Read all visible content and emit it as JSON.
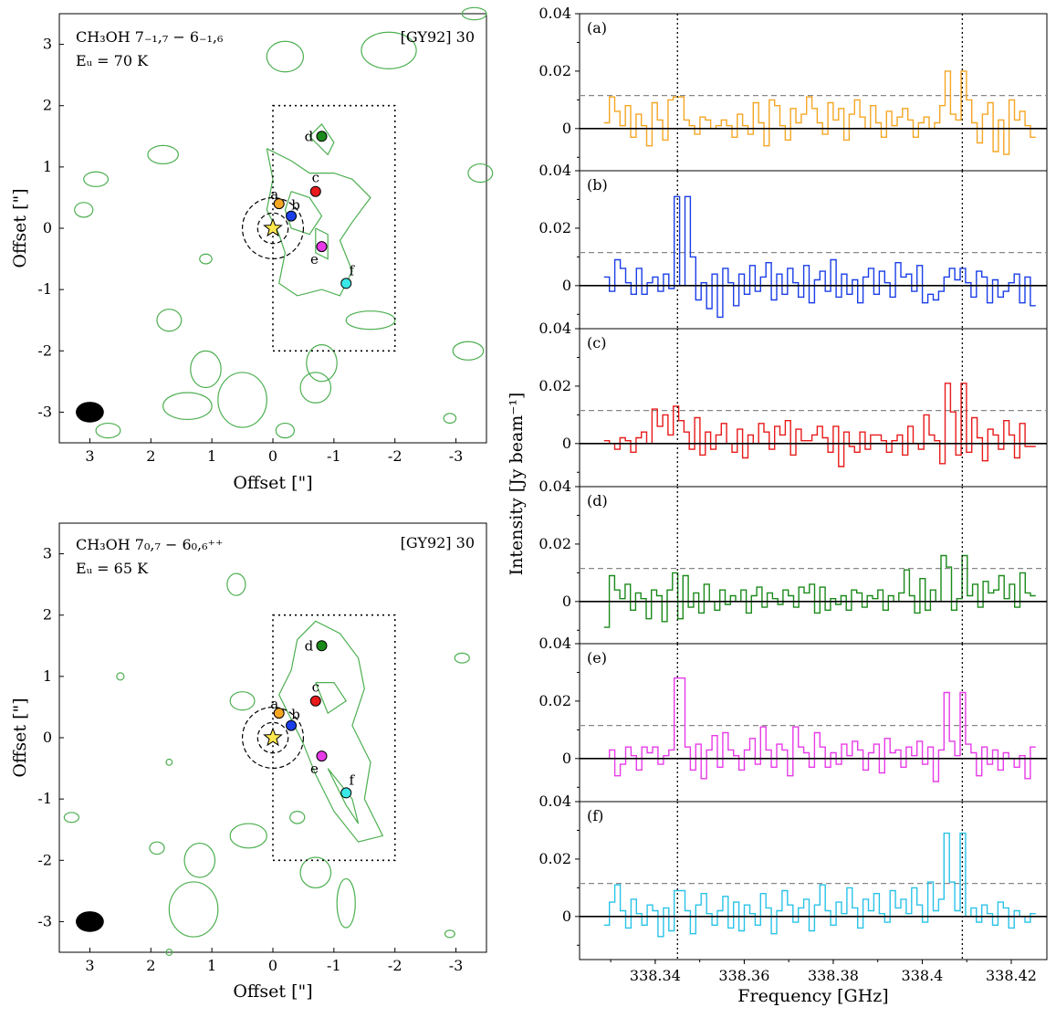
{
  "chart_data": [
    {
      "type": "contour-map",
      "name": "map-top",
      "title_line1": "CH₃OH 7₋₁,₇ − 6₋₁,₆",
      "title_line2": "Eᵤ = 70 K",
      "source": "[GY92] 30",
      "xlabel": "Offset [\"]",
      "ylabel": "Offset [\"]",
      "xlim": [
        3.5,
        -3.5
      ],
      "ylim": [
        -3.5,
        3.5
      ],
      "xticks": [
        3,
        2,
        1,
        0,
        -1,
        -2,
        -3
      ],
      "yticks": [
        3,
        2,
        1,
        0,
        -1,
        -2,
        -3
      ],
      "region_box": {
        "x": [
          0,
          -2
        ],
        "y": [
          -2,
          2
        ]
      },
      "star": {
        "x": 0,
        "y": 0
      },
      "beam": {
        "x": 3,
        "y": -3
      },
      "points": [
        {
          "label": "a",
          "x": -0.1,
          "y": 0.4,
          "color": "#f5a623"
        },
        {
          "label": "b",
          "x": -0.3,
          "y": 0.2,
          "color": "#1a3ee8"
        },
        {
          "label": "c",
          "x": -0.7,
          "y": 0.6,
          "color": "#e81a1a"
        },
        {
          "label": "d",
          "x": -0.8,
          "y": 1.5,
          "color": "#1a8a1a"
        },
        {
          "label": "e",
          "x": -0.8,
          "y": -0.3,
          "color": "#e83ae8"
        },
        {
          "label": "f",
          "x": -1.2,
          "y": -0.9,
          "color": "#3ae8e8"
        }
      ]
    },
    {
      "type": "contour-map",
      "name": "map-bottom",
      "title_line1": "CH₃OH 7₀,₇ − 6₀,₆⁺⁺",
      "title_line2": "Eᵤ = 65 K",
      "source": "[GY92] 30",
      "xlabel": "Offset [\"]",
      "ylabel": "Offset [\"]",
      "xlim": [
        3.5,
        -3.5
      ],
      "ylim": [
        -3.5,
        3.5
      ],
      "xticks": [
        3,
        2,
        1,
        0,
        -1,
        -2,
        -3
      ],
      "yticks": [
        3,
        2,
        1,
        0,
        -1,
        -2,
        -3
      ],
      "region_box": {
        "x": [
          0,
          -2
        ],
        "y": [
          -2,
          2
        ]
      },
      "star": {
        "x": 0,
        "y": 0
      },
      "beam": {
        "x": 3,
        "y": -3
      },
      "points": [
        {
          "label": "a",
          "x": -0.1,
          "y": 0.4,
          "color": "#f5a623"
        },
        {
          "label": "b",
          "x": -0.3,
          "y": 0.2,
          "color": "#1a3ee8"
        },
        {
          "label": "c",
          "x": -0.7,
          "y": 0.6,
          "color": "#e81a1a"
        },
        {
          "label": "d",
          "x": -0.8,
          "y": 1.5,
          "color": "#1a8a1a"
        },
        {
          "label": "e",
          "x": -0.8,
          "y": -0.3,
          "color": "#e83ae8"
        },
        {
          "label": "f",
          "x": -1.2,
          "y": -0.9,
          "color": "#3ae8e8"
        }
      ]
    },
    {
      "type": "line",
      "name": "spectra",
      "xlabel": "Frequency [GHz]",
      "ylabel": "Intensity [Jy beam⁻¹]",
      "xlim": [
        338.323,
        338.428
      ],
      "ylim": [
        -0.015,
        0.04
      ],
      "xticks": [
        "338.34",
        "338.36",
        "338.38",
        "338.4",
        "338.42"
      ],
      "xtick_values": [
        338.34,
        338.36,
        338.38,
        338.4,
        338.42
      ],
      "yticks": [
        "0",
        "0.02",
        "0.04"
      ],
      "ytick_values": [
        0,
        0.02,
        0.04
      ],
      "line_freqs": [
        338.345,
        338.409
      ],
      "threshold": 0.0115,
      "panels": [
        {
          "label": "(a)",
          "color": "#f5a623",
          "peaks": [
            [
              338.345,
              0.011
            ],
            [
              338.409,
              0.02
            ]
          ],
          "values": [
            0.002,
            0.011,
            0.006,
            0.001,
            0.008,
            -0.003,
            0.005,
            0.001,
            -0.006,
            0.009,
            0.003,
            -0.004,
            0.01,
            0.004,
            0.011,
            0.003,
            0.001,
            -0.002,
            0.004,
            0.003,
            0.0,
            0.001,
            0.003,
            0.001,
            -0.003,
            0.005,
            0.001,
            -0.002,
            0.009,
            0.002,
            -0.006,
            0.01,
            0.008,
            0.001,
            -0.004,
            0.007,
            0.002,
            0.005,
            0.011,
            0.007,
            0.002,
            -0.002,
            0.009,
            0.003,
            0.007,
            -0.004,
            0.005,
            0.01,
            0.004,
            0.0,
            0.008,
            0.002,
            -0.003,
            0.006,
            0.001,
            0.004,
            0.007,
            0.003,
            -0.003,
            0.002,
            0.004,
            0.0,
            0.002,
            0.008,
            0.02,
            0.005,
            0.003,
            -0.002,
            0.01,
            0.002,
            -0.005,
            0.005,
            0.009,
            -0.008,
            0.003,
            -0.009,
            0.01,
            0.003,
            0.006,
            0.001,
            -0.003
          ]
        },
        {
          "label": "(b)",
          "color": "#1a3ee8",
          "peaks": [
            [
              338.345,
              0.031
            ],
            [
              338.409,
              0.006
            ]
          ],
          "values": [
            0.003,
            -0.002,
            0.009,
            0.006,
            0.001,
            -0.003,
            0.006,
            -0.003,
            0.001,
            0.003,
            -0.002,
            0.004,
            -0.001,
            0.003,
            0.0,
            0.031,
            0.01,
            -0.005,
            0.001,
            -0.008,
            0.004,
            -0.011,
            0.006,
            0.001,
            -0.007,
            0.004,
            -0.003,
            0.007,
            -0.002,
            0.003,
            0.008,
            -0.005,
            0.004,
            -0.003,
            0.006,
            0.001,
            -0.004,
            0.007,
            -0.006,
            0.002,
            0.005,
            -0.002,
            0.009,
            -0.004,
            0.004,
            -0.003,
            0.002,
            -0.006,
            0.003,
            0.006,
            -0.003,
            0.005,
            0.001,
            -0.004,
            0.008,
            0.003,
            0.004,
            -0.002,
            0.007,
            -0.006,
            -0.003,
            -0.005,
            -0.002,
            0.003,
            0.006,
            0.002,
            0.004,
            0.001,
            -0.004,
            0.005,
            0.003,
            -0.006,
            0.002,
            -0.004,
            -0.002,
            0.001,
            0.004,
            -0.006,
            0.003,
            -0.007
          ]
        },
        {
          "label": "(c)",
          "color": "#e81a1a",
          "peaks": [
            [
              338.345,
              0.013
            ],
            [
              338.409,
              0.021
            ]
          ],
          "values": [
            0.001,
            0.0,
            -0.002,
            0.002,
            0.001,
            -0.003,
            0.002,
            0.004,
            0.0,
            0.012,
            0.006,
            0.01,
            0.003,
            0.013,
            0.008,
            0.004,
            -0.002,
            0.009,
            -0.004,
            0.004,
            -0.002,
            0.003,
            0.007,
            0.0,
            -0.003,
            0.005,
            -0.005,
            0.003,
            0.0,
            0.007,
            0.004,
            -0.002,
            0.006,
            0.003,
            0.008,
            -0.004,
            0.005,
            0.001,
            0.001,
            0.003,
            0.006,
            0.002,
            -0.003,
            0.006,
            -0.008,
            0.004,
            -0.001,
            -0.003,
            0.004,
            -0.002,
            0.003,
            0.003,
            0.001,
            -0.003,
            0.001,
            0.003,
            -0.004,
            0.006,
            0.0,
            -0.002,
            0.01,
            0.003,
            0.001,
            -0.007,
            0.021,
            0.011,
            -0.004,
            0.006,
            -0.003,
            0.009,
            0.002,
            -0.006,
            0.005,
            0.003,
            -0.002,
            0.008,
            0.003,
            -0.005,
            0.007,
            -0.001,
            -0.001
          ]
        },
        {
          "label": "(d)",
          "color": "#1a8a1a",
          "peaks": [
            [
              338.345,
              0.01
            ],
            [
              338.409,
              0.016
            ]
          ],
          "values": [
            -0.009,
            0.009,
            0.004,
            0.001,
            0.006,
            -0.003,
            0.003,
            0.001,
            -0.006,
            0.004,
            0.002,
            -0.007,
            0.004,
            0.01,
            -0.006,
            0.009,
            -0.002,
            0.003,
            -0.004,
            0.006,
            0.0,
            -0.003,
            0.004,
            -0.001,
            0.002,
            0.0,
            0.004,
            -0.004,
            0.002,
            0.005,
            -0.002,
            0.003,
            0.001,
            -0.001,
            0.004,
            0.002,
            -0.002,
            0.005,
            0.003,
            0.006,
            -0.004,
            0.005,
            -0.003,
            0.001,
            -0.001,
            0.002,
            -0.003,
            0.004,
            0.003,
            -0.002,
            0.002,
            0.001,
            0.004,
            -0.003,
            0.002,
            0.0,
            0.003,
            0.011,
            0.002,
            -0.004,
            0.008,
            -0.003,
            0.004,
            0.0,
            0.016,
            0.012,
            -0.003,
            0.001,
            0.004,
            0.002,
            0.006,
            -0.002,
            0.007,
            0.003,
            0.004,
            0.009,
            0.001,
            0.006,
            -0.002,
            0.01,
            0.003,
            0.002
          ]
        },
        {
          "label": "(e)",
          "color": "#e83ae8",
          "peaks": [
            [
              338.345,
              0.028
            ],
            [
              338.409,
              0.023
            ]
          ],
          "values": [
            0.0,
            0.003,
            -0.006,
            -0.002,
            0.004,
            0.001,
            -0.004,
            0.004,
            0.002,
            0.004,
            -0.002,
            0.001,
            0.003,
            -0.001,
            0.028,
            0.004,
            -0.004,
            0.005,
            -0.007,
            0.003,
            0.008,
            -0.003,
            0.009,
            0.003,
            0.001,
            -0.004,
            0.003,
            0.007,
            -0.002,
            0.011,
            0.003,
            -0.003,
            0.005,
            0.003,
            -0.006,
            0.011,
            0.004,
            0.002,
            -0.003,
            0.009,
            0.004,
            -0.003,
            0.002,
            -0.002,
            0.005,
            0.001,
            0.006,
            0.003,
            -0.004,
            0.002,
            0.005,
            -0.005,
            0.007,
            0.002,
            0.003,
            -0.003,
            0.004,
            0.001,
            0.006,
            -0.002,
            0.004,
            -0.008,
            0.003,
            0.023,
            0.006,
            0.001,
            -0.003,
            0.005,
            0.002,
            -0.006,
            0.004,
            -0.002,
            0.003,
            -0.004,
            0.002,
            0.0,
            -0.003,
            0.001,
            -0.007,
            0.004
          ]
        },
        {
          "label": "(f)",
          "color": "#29c3e8",
          "peaks": [
            [
              338.345,
              0.009
            ],
            [
              338.409,
              0.029
            ]
          ],
          "values": [
            -0.003,
            0.005,
            0.011,
            0.002,
            -0.004,
            0.006,
            0.001,
            -0.003,
            0.004,
            0.002,
            -0.007,
            0.003,
            -0.005,
            0.006,
            0.009,
            0.002,
            -0.006,
            0.004,
            0.008,
            0.001,
            -0.003,
            0.002,
            0.007,
            -0.004,
            0.005,
            -0.005,
            0.004,
            0.001,
            -0.003,
            0.008,
            0.003,
            -0.006,
            0.002,
            0.009,
            0.004,
            -0.002,
            0.003,
            0.006,
            -0.005,
            0.004,
            0.011,
            0.002,
            -0.003,
            0.005,
            0.001,
            0.01,
            0.003,
            -0.004,
            0.006,
            0.002,
            0.008,
            0.001,
            -0.002,
            0.009,
            0.003,
            0.006,
            0.001,
            0.01,
            0.004,
            -0.002,
            0.012,
            0.002,
            0.006,
            0.029,
            0.012,
            0.002,
            0.004,
            0.0,
            0.003,
            -0.002,
            0.004,
            0.001,
            -0.003,
            0.005,
            0.003,
            -0.004,
            0.002,
            0.0,
            -0.002,
            0.001
          ]
        }
      ]
    }
  ]
}
